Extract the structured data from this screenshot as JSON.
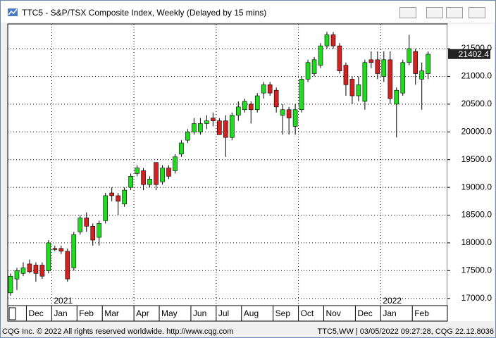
{
  "window": {
    "status_left": "CQG Inc. © 2022 All rights reserved worldwide. http://www.cqg.com",
    "status_right": "TTC5,WW | 03/05/2022 09:27:28, CQG 22.12.8036"
  },
  "chart_data": {
    "type": "candlestick",
    "title": "TTC5 - S&P/TSX Composite Index, Weekly (Delayed by 15 mins)",
    "categories": [
      null,
      null,
      null,
      null,
      null,
      null,
      null,
      null,
      null,
      null,
      null,
      null,
      null,
      null,
      null,
      null,
      null,
      null,
      null,
      null,
      null,
      null,
      null,
      null,
      null,
      null,
      null,
      null,
      null,
      null,
      null,
      null,
      null,
      null,
      null,
      null,
      null,
      null,
      null,
      null,
      null,
      null,
      null,
      null,
      null,
      null,
      null,
      null,
      null,
      null,
      null,
      null,
      null,
      null,
      null,
      null,
      null,
      null,
      null,
      null,
      null,
      null,
      null,
      null,
      null,
      null,
      null
    ],
    "open": [
      17100,
      17350,
      17450,
      17620,
      17600,
      17600,
      17500,
      17900,
      17900,
      17850,
      17550,
      18200,
      18450,
      18300,
      18100,
      18400,
      18900,
      18850,
      18700,
      19000,
      19250,
      19300,
      19050,
      19450,
      19100,
      19350,
      19300,
      19600,
      19850,
      20000,
      20000,
      20150,
      20250,
      20200,
      20200,
      19900,
      20300,
      20400,
      20500,
      20400,
      20700,
      20850,
      20750,
      20300,
      20400,
      20100,
      20400,
      20950,
      21050,
      21200,
      21550,
      21750,
      21550,
      21200,
      20950,
      20650,
      20550,
      21300,
      21300,
      21000,
      21300,
      20500,
      20700,
      21250,
      21450,
      20950,
      21050
    ],
    "high": [
      17450,
      17550,
      17650,
      17700,
      17650,
      17650,
      18050,
      17950,
      17950,
      17900,
      18200,
      18500,
      18550,
      18350,
      18400,
      18900,
      19000,
      18900,
      19000,
      19250,
      19400,
      19350,
      19200,
      19450,
      19400,
      19400,
      19600,
      19850,
      20050,
      20250,
      20250,
      20300,
      20350,
      20250,
      20300,
      20350,
      20550,
      20600,
      20550,
      20700,
      20900,
      20900,
      20800,
      20500,
      20450,
      20500,
      21000,
      21300,
      21350,
      21600,
      21800,
      21800,
      21600,
      21250,
      21000,
      21000,
      21300,
      21450,
      21450,
      21450,
      21450,
      20800,
      21300,
      21750,
      21500,
      21250,
      21450
    ],
    "low": [
      17050,
      17150,
      17400,
      17450,
      17300,
      17350,
      17450,
      17850,
      17800,
      17300,
      17500,
      18150,
      18200,
      17950,
      17950,
      18350,
      18750,
      18500,
      18650,
      18950,
      19200,
      18950,
      19000,
      18950,
      19050,
      19150,
      19250,
      19550,
      19800,
      19950,
      19950,
      20050,
      20100,
      19950,
      19550,
      19850,
      20200,
      20350,
      20150,
      20350,
      20600,
      20650,
      20350,
      19950,
      19950,
      19950,
      20350,
      20900,
      21000,
      21150,
      21500,
      21500,
      21050,
      20650,
      20500,
      20550,
      20400,
      21150,
      20950,
      20900,
      20500,
      19900,
      20650,
      21200,
      20850,
      20400,
      20950
    ],
    "close": [
      17400,
      17500,
      17550,
      17480,
      17450,
      17400,
      18000,
      17880,
      17850,
      17350,
      18150,
      18450,
      18300,
      18050,
      18350,
      18850,
      18850,
      18750,
      18950,
      19200,
      19350,
      19050,
      19150,
      19050,
      19350,
      19200,
      19550,
      19800,
      20000,
      20150,
      20150,
      20200,
      20200,
      19950,
      19900,
      20300,
      20450,
      20550,
      20400,
      20650,
      20850,
      20700,
      20450,
      20400,
      20250,
      20400,
      20950,
      21250,
      21300,
      21550,
      21750,
      21550,
      21100,
      20850,
      20650,
      20850,
      21250,
      21250,
      21050,
      21300,
      20600,
      20750,
      21250,
      21500,
      21050,
      21100,
      21400
    ],
    "up_color": "#1fdc1f",
    "down_color": "#d42020",
    "ylim": [
      16870,
      21945
    ],
    "yticks": [
      {
        "value": 17000,
        "label": "17000.0"
      },
      {
        "value": 17500,
        "label": "17500.0"
      },
      {
        "value": 18000,
        "label": "18000.0"
      },
      {
        "value": 18500,
        "label": "18500.0"
      },
      {
        "value": 19000,
        "label": "19000.0"
      },
      {
        "value": 19500,
        "label": "19500.0"
      },
      {
        "value": 20000,
        "label": "20000.0"
      },
      {
        "value": 20500,
        "label": "20500.0"
      },
      {
        "value": 21000,
        "label": "21000.0"
      },
      {
        "value": 21500,
        "label": "21500.0"
      }
    ],
    "xticks": [
      {
        "value": 2.5,
        "label": "Dec"
      },
      {
        "value": 6.5,
        "label": "Jan"
      },
      {
        "value": 10.5,
        "label": "Feb"
      },
      {
        "value": 14.5,
        "label": "Mar"
      },
      {
        "value": 19.5,
        "label": "Apr"
      },
      {
        "value": 23.5,
        "label": "May"
      },
      {
        "value": 28.5,
        "label": "Jun"
      },
      {
        "value": 32.5,
        "label": "Jul"
      },
      {
        "value": 36.5,
        "label": "Aug"
      },
      {
        "value": 41.5,
        "label": "Sep"
      },
      {
        "value": 45.5,
        "label": "Oct"
      },
      {
        "value": 49.5,
        "label": "Nov"
      },
      {
        "value": 54.5,
        "label": "Dec"
      },
      {
        "value": 58.5,
        "label": "Jan"
      },
      {
        "value": 63.5,
        "label": "Feb"
      }
    ],
    "year_labels": [
      {
        "value": 6.5,
        "label": "2021"
      },
      {
        "value": 58.5,
        "label": "2022"
      }
    ],
    "last_price": 21402.4,
    "grid": true
  }
}
